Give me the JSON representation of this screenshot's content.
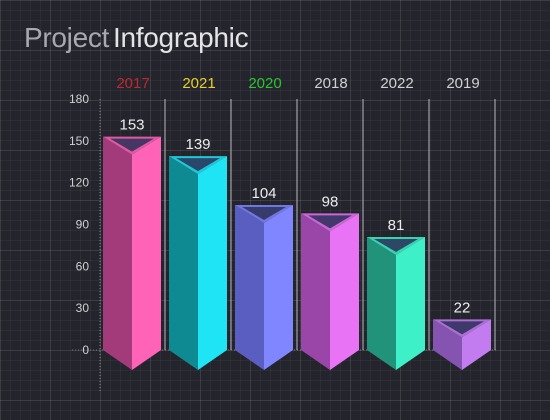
{
  "title": {
    "part1": "Project",
    "part2": "Infographic"
  },
  "colors": {
    "background": "#24242c",
    "axis_text": "#d0d0d4",
    "category_label_colors": [
      "#c0282c",
      "#e6d02a",
      "#2ec42e",
      "#d0d0d4",
      "#d0d0d4",
      "#d0d0d4"
    ],
    "bar_front": [
      "#ff63b8",
      "#1fe4f5",
      "#7f86ff",
      "#e873f5",
      "#3ef0c8",
      "#c27cf0"
    ],
    "bar_side": [
      "#a33a7a",
      "#0e8a93",
      "#5a5ec0",
      "#9a46a8",
      "#21937a",
      "#8553b0"
    ]
  },
  "chart_data": {
    "type": "bar",
    "categories": [
      "2017",
      "2021",
      "2020",
      "2018",
      "2022",
      "2019"
    ],
    "values": [
      153,
      139,
      104,
      98,
      81,
      22
    ],
    "ylim": [
      0,
      180
    ],
    "yticks": [
      0,
      30,
      60,
      90,
      120,
      150,
      180
    ],
    "xlabel": "",
    "ylabel": "",
    "category_axis_position": "top",
    "grid": true
  }
}
